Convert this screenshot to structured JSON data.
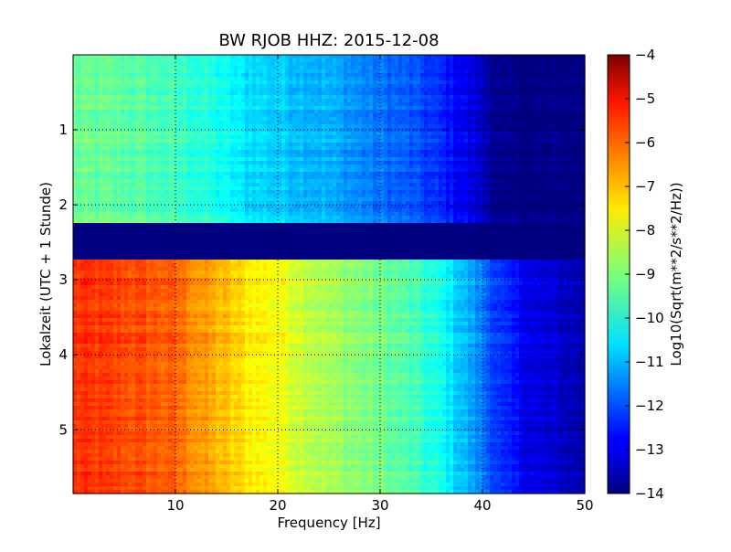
{
  "chart_data": {
    "type": "heatmap",
    "title": "BW RJOB HHZ: 2015-12-08",
    "xlabel": "Frequency [Hz]",
    "ylabel": "Lokalzeit (UTC + 1 Stunde)",
    "xlim": [
      0,
      50
    ],
    "ylim": [
      5.85,
      0
    ],
    "x_ticks": [
      10,
      20,
      30,
      40,
      50
    ],
    "y_ticks": [
      1,
      2,
      3,
      4,
      5
    ],
    "grid": true,
    "colormap": "jet",
    "colorbar": {
      "label": "Log10(Sqrt(m**2/s**2/Hz))",
      "range": [
        -14,
        -4
      ],
      "ticks": [
        -4,
        -5,
        -6,
        -7,
        -8,
        -9,
        -10,
        -11,
        -12,
        -13,
        -14
      ]
    },
    "gap_hours": [
      2.22,
      2.72
    ],
    "profile_frequencies_hz": [
      0,
      5,
      10,
      13,
      17,
      20,
      25,
      30,
      33,
      36,
      38,
      40,
      41,
      42,
      45,
      50
    ],
    "profile_before_gap": [
      -9.2,
      -9.3,
      -9.6,
      -9.9,
      -10.5,
      -10.7,
      -11.0,
      -11.6,
      -11.9,
      -12.4,
      -12.8,
      -13.3,
      -13.7,
      -14.0,
      -14.0,
      -14.0
    ],
    "profile_after_gap": [
      -5.7,
      -5.9,
      -6.2,
      -6.8,
      -7.5,
      -7.8,
      -8.6,
      -9.1,
      -9.5,
      -10.1,
      -10.8,
      -11.5,
      -12.0,
      -12.4,
      -13.0,
      -13.5
    ],
    "gap_value": -14
  }
}
